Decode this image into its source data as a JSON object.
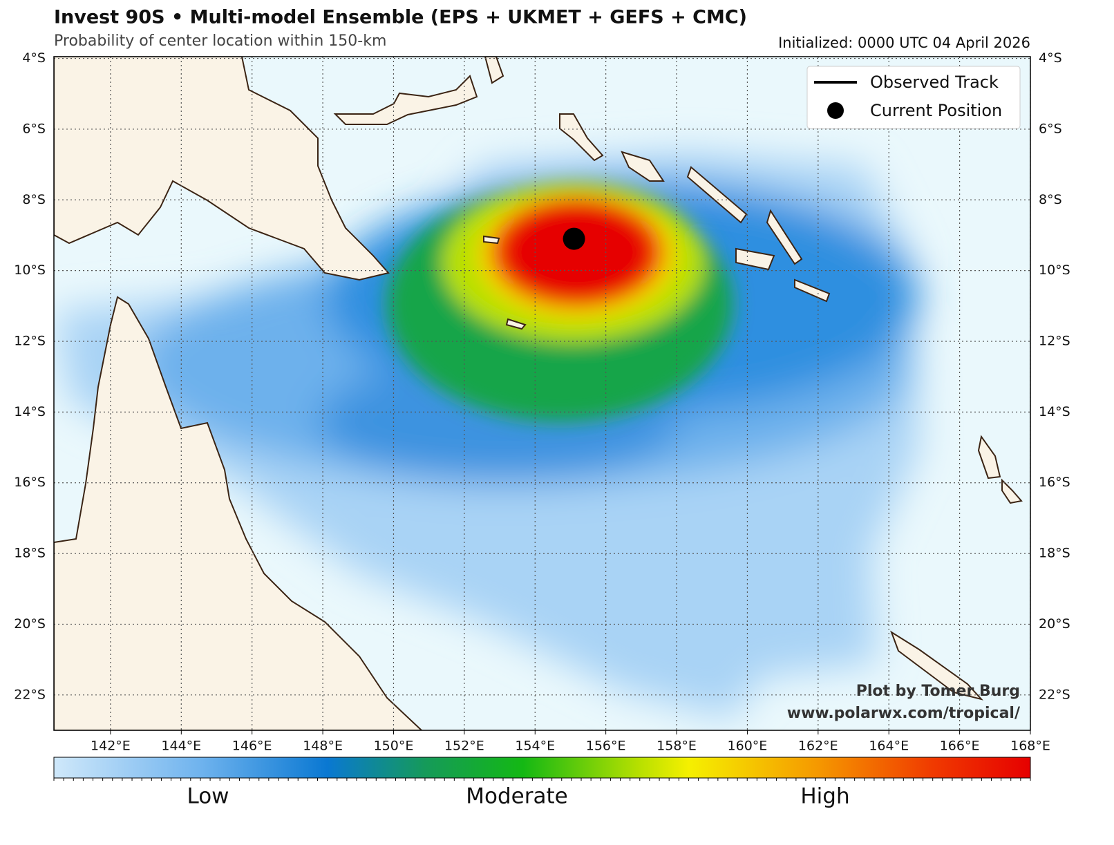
{
  "title": "Invest 90S • Multi-model Ensemble (EPS + UKMET + GEFS + CMC)",
  "subtitle": "Probability of center location within 150-km",
  "initialized": "Initialized: 0000 UTC 04 April 2026",
  "map": {
    "xlim": [
      140.4,
      168
    ],
    "ylim": [
      -23,
      -3.95
    ],
    "xticks": [
      {
        "value": 142,
        "label": "142°E"
      },
      {
        "value": 144,
        "label": "144°E"
      },
      {
        "value": 146,
        "label": "146°E"
      },
      {
        "value": 148,
        "label": "148°E"
      },
      {
        "value": 150,
        "label": "150°E"
      },
      {
        "value": 152,
        "label": "152°E"
      },
      {
        "value": 154,
        "label": "154°E"
      },
      {
        "value": 156,
        "label": "156°E"
      },
      {
        "value": 158,
        "label": "158°E"
      },
      {
        "value": 160,
        "label": "160°E"
      },
      {
        "value": 162,
        "label": "162°E"
      },
      {
        "value": 164,
        "label": "164°E"
      },
      {
        "value": 166,
        "label": "166°E"
      },
      {
        "value": 168,
        "label": "168°E"
      }
    ],
    "yticks": [
      {
        "value": -4,
        "label": "4°S"
      },
      {
        "value": -6,
        "label": "6°S"
      },
      {
        "value": -8,
        "label": "8°S"
      },
      {
        "value": -10,
        "label": "10°S"
      },
      {
        "value": -12,
        "label": "12°S"
      },
      {
        "value": -14,
        "label": "14°S"
      },
      {
        "value": -16,
        "label": "16°S"
      },
      {
        "value": -18,
        "label": "18°S"
      },
      {
        "value": -20,
        "label": "20°S"
      },
      {
        "value": -22,
        "label": "22°S"
      }
    ],
    "grid": true,
    "current_position": {
      "lon": 155.1,
      "lat": -9.1
    }
  },
  "legend": {
    "entries": [
      "Observed Track",
      "Current Position"
    ]
  },
  "colorbar": {
    "labels": [
      "Low",
      "Moderate",
      "High"
    ]
  },
  "credits": [
    "Plot by Tomer Burg",
    "www.polarwx.com/tropical/"
  ]
}
